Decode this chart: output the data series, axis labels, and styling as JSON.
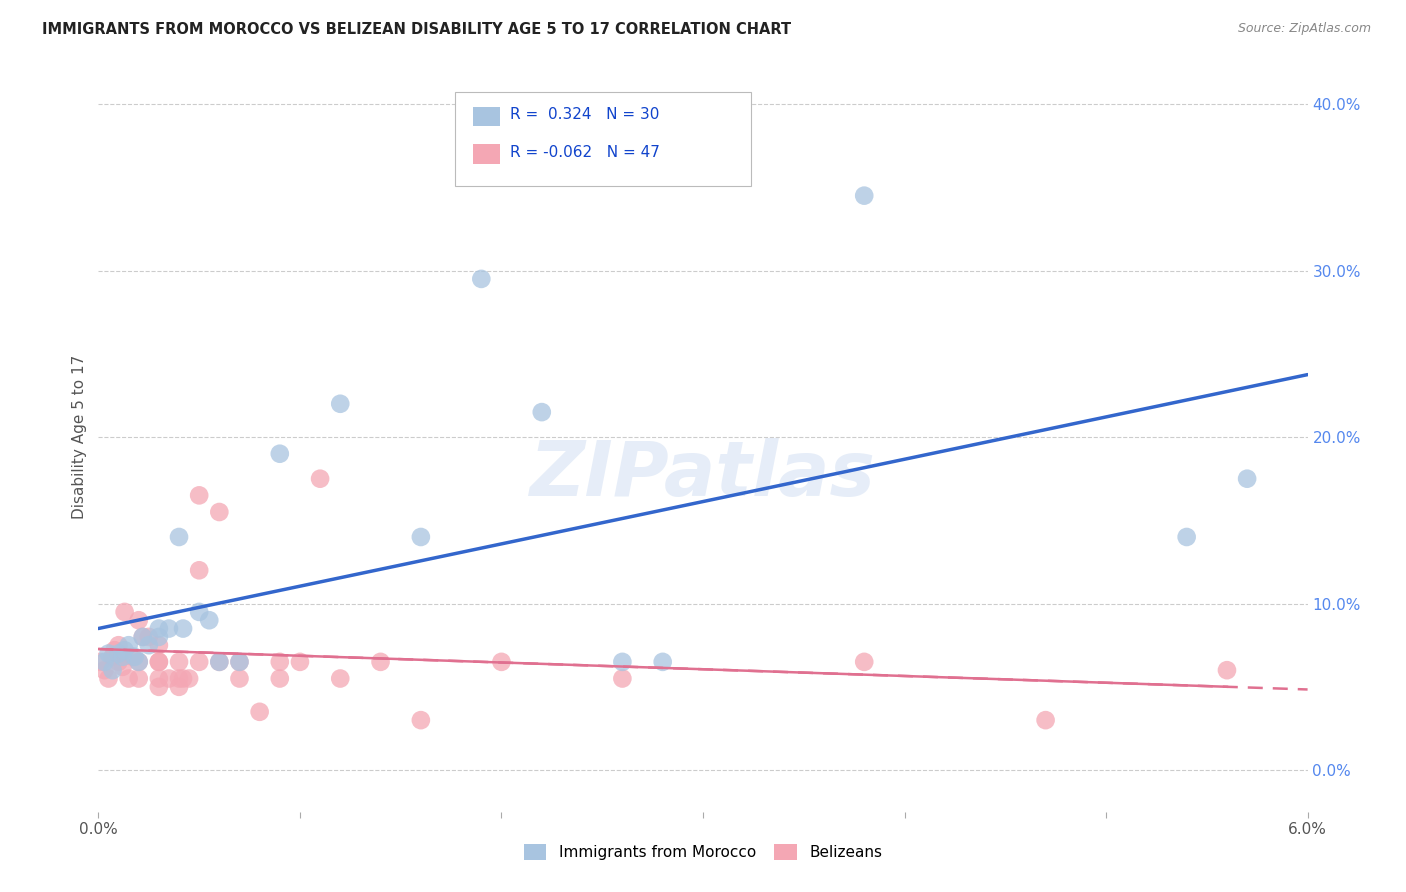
{
  "title": "IMMIGRANTS FROM MOROCCO VS BELIZEAN DISABILITY AGE 5 TO 17 CORRELATION CHART",
  "source": "Source: ZipAtlas.com",
  "ylabel": "Disability Age 5 to 17",
  "ylabel_right_ticks": [
    "0.0%",
    "10.0%",
    "20.0%",
    "30.0%",
    "40.0%"
  ],
  "ylabel_right_values": [
    0.0,
    0.1,
    0.2,
    0.3,
    0.4
  ],
  "xmin": 0.0,
  "xmax": 0.06,
  "ymin": -0.025,
  "ymax": 0.425,
  "r_morocco": 0.324,
  "n_morocco": 30,
  "r_belizean": -0.062,
  "n_belizean": 47,
  "color_morocco": "#a8c4e0",
  "color_belizean": "#f4a7b4",
  "line_color_morocco": "#3366cc",
  "line_color_belizean": "#e07090",
  "legend_label_morocco": "Immigrants from Morocco",
  "legend_label_belizean": "Belizeans",
  "morocco_x": [
    0.0003,
    0.0005,
    0.0007,
    0.001,
    0.0012,
    0.0013,
    0.0015,
    0.0018,
    0.002,
    0.0022,
    0.0025,
    0.003,
    0.003,
    0.0035,
    0.004,
    0.0042,
    0.005,
    0.0055,
    0.006,
    0.007,
    0.009,
    0.012,
    0.016,
    0.019,
    0.022,
    0.026,
    0.028,
    0.038,
    0.054,
    0.057
  ],
  "morocco_y": [
    0.065,
    0.07,
    0.06,
    0.07,
    0.068,
    0.072,
    0.075,
    0.068,
    0.065,
    0.08,
    0.075,
    0.08,
    0.085,
    0.085,
    0.14,
    0.085,
    0.095,
    0.09,
    0.065,
    0.065,
    0.19,
    0.22,
    0.14,
    0.295,
    0.215,
    0.065,
    0.065,
    0.345,
    0.14,
    0.175
  ],
  "belizean_x": [
    0.0001,
    0.0003,
    0.0005,
    0.0007,
    0.0008,
    0.001,
    0.001,
    0.0012,
    0.0013,
    0.0015,
    0.0017,
    0.002,
    0.002,
    0.002,
    0.0022,
    0.0025,
    0.003,
    0.003,
    0.003,
    0.003,
    0.003,
    0.0035,
    0.004,
    0.004,
    0.004,
    0.0042,
    0.0045,
    0.005,
    0.005,
    0.005,
    0.006,
    0.006,
    0.007,
    0.007,
    0.008,
    0.009,
    0.009,
    0.01,
    0.011,
    0.012,
    0.014,
    0.016,
    0.02,
    0.026,
    0.038,
    0.047,
    0.056
  ],
  "belizean_y": [
    0.065,
    0.06,
    0.055,
    0.068,
    0.072,
    0.065,
    0.075,
    0.062,
    0.095,
    0.055,
    0.068,
    0.09,
    0.065,
    0.055,
    0.08,
    0.08,
    0.065,
    0.075,
    0.065,
    0.055,
    0.05,
    0.055,
    0.05,
    0.055,
    0.065,
    0.055,
    0.055,
    0.165,
    0.12,
    0.065,
    0.065,
    0.155,
    0.065,
    0.055,
    0.035,
    0.065,
    0.055,
    0.065,
    0.175,
    0.055,
    0.065,
    0.03,
    0.065,
    0.055,
    0.065,
    0.03,
    0.06
  ],
  "watermark_text": "ZIPatlas",
  "background_color": "#ffffff",
  "grid_color": "#cccccc",
  "x_tick_positions": [
    0.0,
    0.01,
    0.02,
    0.03,
    0.04,
    0.05,
    0.06
  ]
}
